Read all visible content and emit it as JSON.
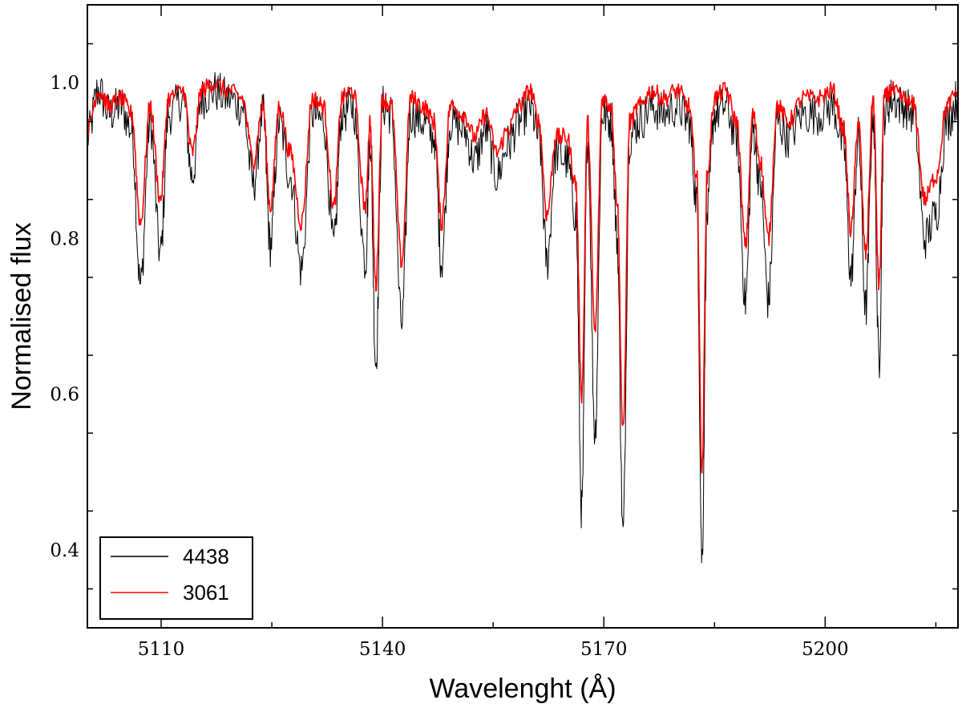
{
  "chart_data": {
    "type": "line",
    "xlabel": "Wavelenght (Å)",
    "ylabel": "Normalised flux",
    "xlim": [
      5100,
      5218
    ],
    "ylim": [
      0.3,
      1.1
    ],
    "x_ticks": [
      5110,
      5140,
      5170,
      5200
    ],
    "x_tick_labels": [
      "5110",
      "5140",
      "5170",
      "5200"
    ],
    "y_ticks": [
      0.4,
      0.6,
      0.8,
      1.0
    ],
    "y_tick_labels": [
      "0.4",
      "0.6",
      "0.8",
      "1.0"
    ],
    "grid": false,
    "legend_position": "bottom-left",
    "series": [
      {
        "name": "4438",
        "color": "#000000",
        "x": [
          5100.0,
          5101.5,
          5103.0,
          5104.5,
          5106.0,
          5107.2,
          5108.5,
          5109.9,
          5111.0,
          5113.0,
          5114.2,
          5115.5,
          5117.0,
          5119.0,
          5121.0,
          5122.5,
          5123.8,
          5124.8,
          5126.0,
          5127.5,
          5129.0,
          5130.5,
          5132.0,
          5133.4,
          5134.5,
          5136.0,
          5137.7,
          5138.3,
          5139.1,
          5140.0,
          5141.2,
          5142.6,
          5143.8,
          5145.5,
          5147.0,
          5148.0,
          5149.2,
          5151.0,
          5152.5,
          5154.0,
          5155.5,
          5157.0,
          5158.5,
          5160.0,
          5161.2,
          5162.3,
          5163.5,
          5165.0,
          5166.2,
          5167.0,
          5167.8,
          5168.8,
          5169.8,
          5171.0,
          5171.8,
          5172.6,
          5173.5,
          5174.8,
          5176.5,
          5178.0,
          5180.0,
          5181.5,
          5182.6,
          5183.3,
          5184.0,
          5185.0,
          5186.5,
          5188.0,
          5189.2,
          5190.2,
          5191.2,
          5192.3,
          5193.5,
          5195.0,
          5197.0,
          5199.0,
          5201.0,
          5202.5,
          5203.5,
          5204.5,
          5205.5,
          5206.5,
          5207.3,
          5208.0,
          5209.0,
          5210.5,
          5212.0,
          5213.5,
          5215.0,
          5216.5,
          5218.0
        ],
        "y": [
          0.93,
          0.99,
          0.96,
          0.97,
          0.94,
          0.74,
          0.95,
          0.78,
          0.96,
          0.98,
          0.88,
          0.98,
          0.99,
          0.98,
          0.97,
          0.87,
          0.96,
          0.79,
          0.95,
          0.88,
          0.76,
          0.96,
          0.95,
          0.79,
          0.96,
          0.97,
          0.77,
          0.93,
          0.64,
          0.97,
          0.96,
          0.69,
          0.96,
          0.95,
          0.93,
          0.77,
          0.95,
          0.94,
          0.9,
          0.94,
          0.88,
          0.92,
          0.95,
          0.97,
          0.93,
          0.77,
          0.91,
          0.9,
          0.83,
          0.45,
          0.93,
          0.55,
          0.96,
          0.95,
          0.8,
          0.42,
          0.93,
          0.95,
          0.97,
          0.96,
          0.97,
          0.95,
          0.85,
          0.39,
          0.83,
          0.96,
          0.97,
          0.93,
          0.72,
          0.94,
          0.87,
          0.72,
          0.95,
          0.93,
          0.96,
          0.96,
          0.97,
          0.92,
          0.75,
          0.93,
          0.71,
          0.96,
          0.64,
          0.96,
          0.98,
          0.97,
          0.96,
          0.8,
          0.83,
          0.95,
          0.98
        ]
      },
      {
        "name": "3061",
        "color": "#ff0000",
        "x": [
          5100.0,
          5101.5,
          5103.0,
          5104.5,
          5106.0,
          5107.2,
          5108.5,
          5109.9,
          5111.0,
          5113.0,
          5114.2,
          5115.5,
          5117.0,
          5119.0,
          5121.0,
          5122.5,
          5123.8,
          5124.8,
          5126.0,
          5127.5,
          5129.0,
          5130.5,
          5132.0,
          5133.4,
          5134.5,
          5136.0,
          5137.7,
          5138.3,
          5139.1,
          5140.0,
          5141.2,
          5142.6,
          5143.8,
          5145.5,
          5147.0,
          5148.0,
          5149.2,
          5151.0,
          5152.5,
          5154.0,
          5155.5,
          5157.0,
          5158.5,
          5160.0,
          5161.2,
          5162.3,
          5163.5,
          5165.0,
          5166.2,
          5167.0,
          5167.8,
          5168.8,
          5169.8,
          5171.0,
          5171.8,
          5172.6,
          5173.5,
          5174.8,
          5176.5,
          5178.0,
          5180.0,
          5181.5,
          5182.6,
          5183.3,
          5184.0,
          5185.0,
          5186.5,
          5188.0,
          5189.2,
          5190.2,
          5191.2,
          5192.3,
          5193.5,
          5195.0,
          5197.0,
          5199.0,
          5201.0,
          5202.5,
          5203.5,
          5204.5,
          5205.5,
          5206.5,
          5207.3,
          5208.0,
          5209.0,
          5210.5,
          5212.0,
          5213.5,
          5215.0,
          5216.5,
          5218.0
        ],
        "y": [
          0.94,
          0.99,
          0.97,
          0.98,
          0.96,
          0.82,
          0.97,
          0.85,
          0.98,
          0.99,
          0.91,
          0.99,
          1.0,
          0.99,
          0.98,
          0.9,
          0.97,
          0.84,
          0.97,
          0.91,
          0.82,
          0.98,
          0.97,
          0.84,
          0.98,
          0.99,
          0.84,
          0.95,
          0.74,
          0.98,
          0.97,
          0.77,
          0.98,
          0.97,
          0.95,
          0.82,
          0.97,
          0.96,
          0.93,
          0.96,
          0.91,
          0.94,
          0.97,
          0.99,
          0.95,
          0.83,
          0.93,
          0.93,
          0.87,
          0.6,
          0.95,
          0.68,
          0.98,
          0.97,
          0.85,
          0.55,
          0.95,
          0.97,
          0.99,
          0.98,
          0.99,
          0.97,
          0.88,
          0.5,
          0.88,
          0.98,
          0.99,
          0.95,
          0.79,
          0.96,
          0.9,
          0.8,
          0.97,
          0.95,
          0.98,
          0.98,
          0.99,
          0.94,
          0.81,
          0.95,
          0.78,
          0.98,
          0.74,
          0.98,
          0.99,
          0.98,
          0.97,
          0.85,
          0.88,
          0.97,
          0.99
        ]
      }
    ]
  }
}
